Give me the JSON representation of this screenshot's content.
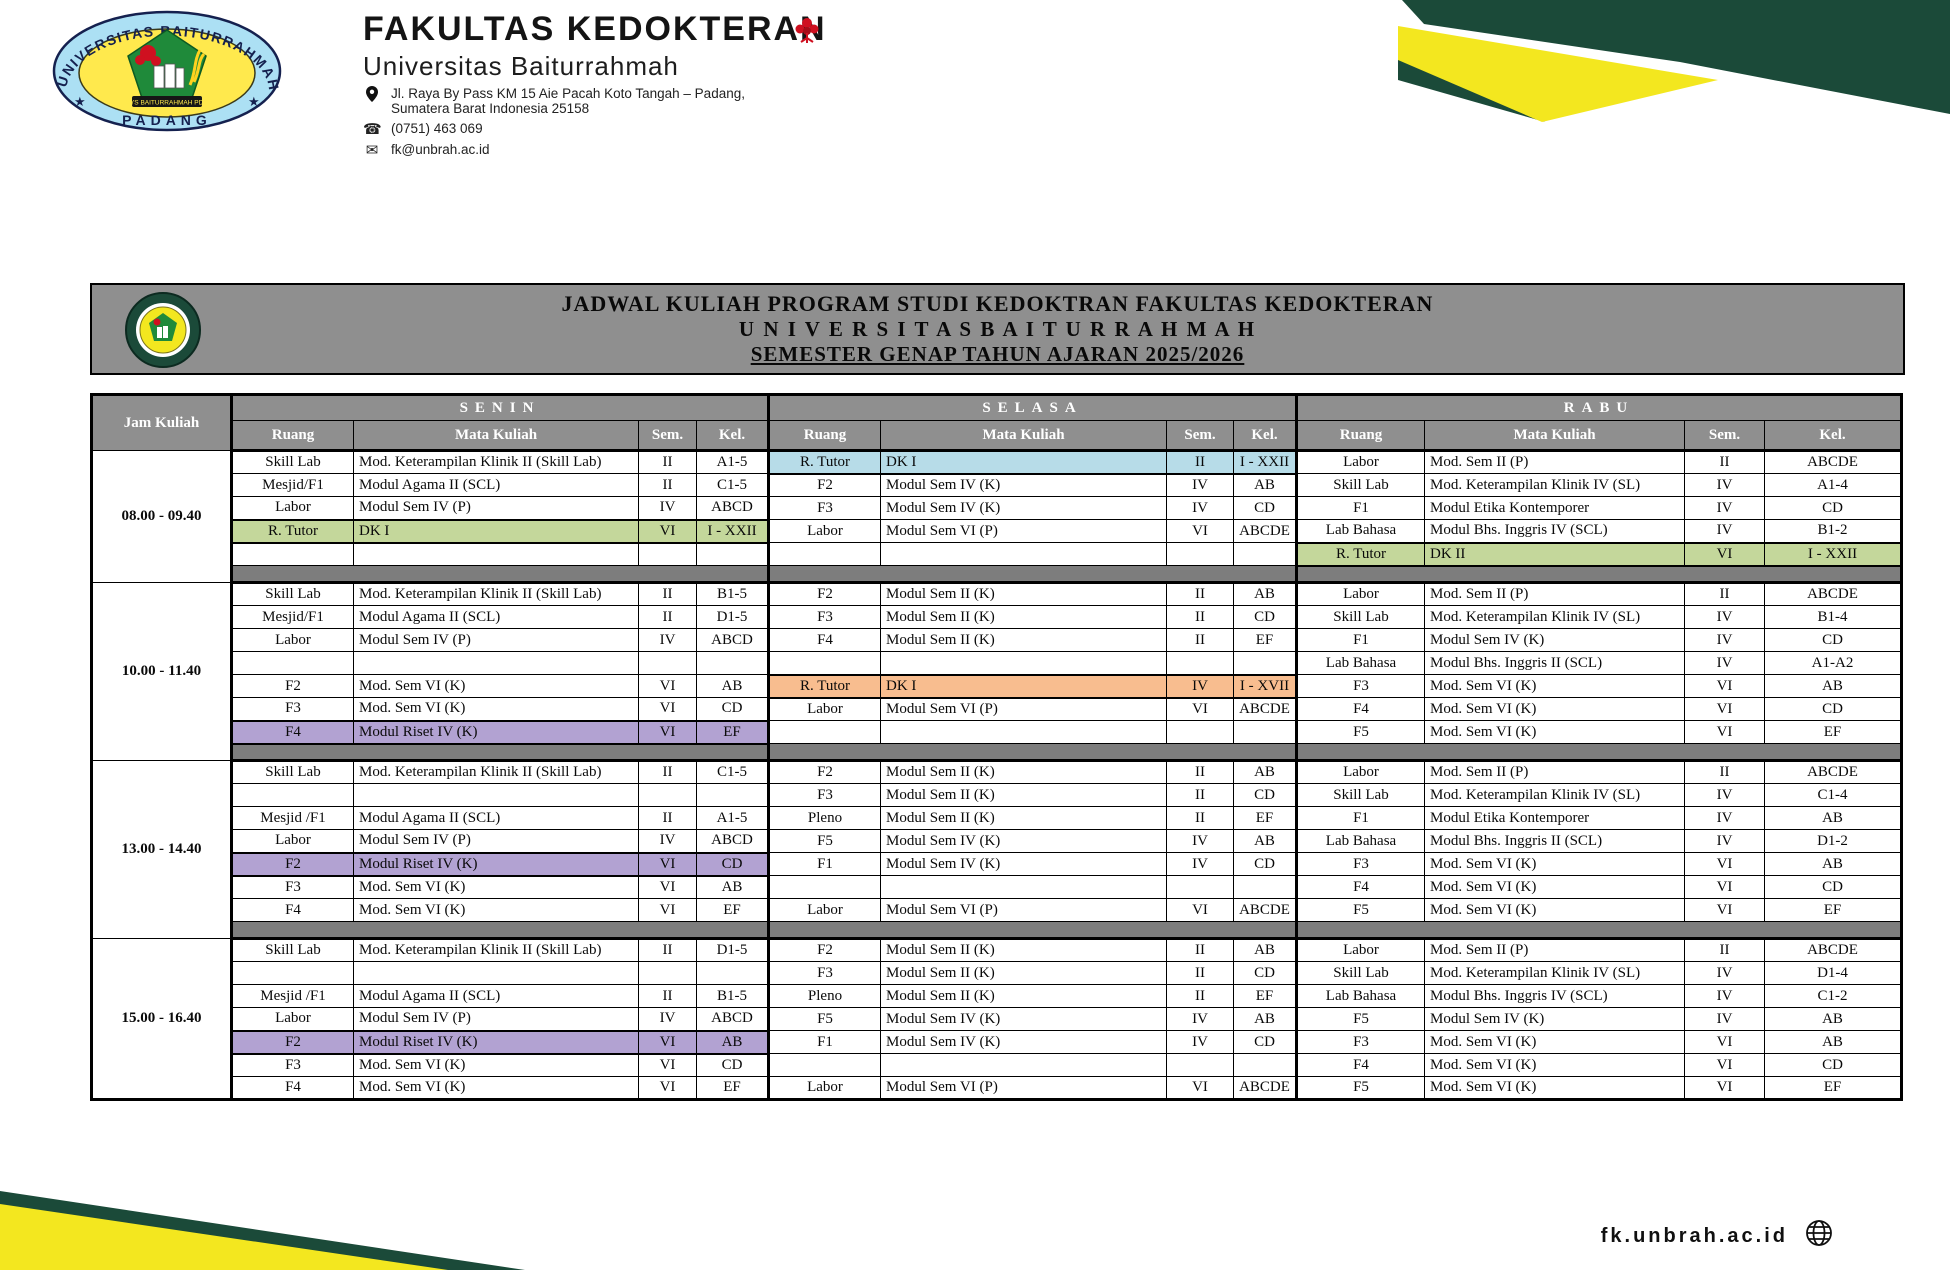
{
  "letterhead": {
    "faculty": "FAKULTAS KEDOKTERAN",
    "university": "Universitas Baiturrahmah",
    "address_line1": "Jl. Raya By Pass KM 15 Aie Pacah Koto Tangah – Padang,",
    "address_line2": "Sumatera Barat Indonesia 25158",
    "phone": "(0751) 463 069",
    "email": "fk@unbrah.ac.id",
    "logo_ring_text": "UNIVERSITAS BAITURRAHMAH",
    "logo_bottom_text": "PADANG",
    "logo_banner_text": "YYS BAITURRAHMAH PDG"
  },
  "title_bar": {
    "line1": "JADWAL KULIAH PROGRAM STUDI KEDOKTRAN FAKULTAS KEDOKTERAN",
    "line2": "U N I V E R S I T A S    B A I T U R R A H M A H",
    "line3": "SEMESTER GENAP TAHUN AJARAN 2025/2026"
  },
  "footer": {
    "website": "fk.unbrah.ac.id"
  },
  "colors": {
    "brand_green": "#1b4a39",
    "brand_yellow": "#f3e71f",
    "header_gray": "#8f8f8f",
    "separator_gray": "#7d7d7d",
    "highlight_green": "#c4d79b",
    "highlight_blue": "#b7dce8",
    "highlight_orange": "#f8bd8f",
    "highlight_purple": "#b2a2d2"
  },
  "schedule": {
    "jam_header": "Jam Kuliah",
    "columns": [
      "Ruang",
      "Mata Kuliah",
      "Sem.",
      "Kel."
    ],
    "days": [
      {
        "key": "senin",
        "label": "SENIN"
      },
      {
        "key": "selasa",
        "label": "SELASA"
      },
      {
        "key": "rabu",
        "label": "RABU"
      }
    ],
    "blocks": [
      {
        "time": "08.00 - 09.40",
        "separator_after": true,
        "rows": {
          "senin": [
            [
              "Skill Lab",
              "Mod. Keterampilan Klinik II (Skill Lab)",
              "II",
              "A1-5",
              ""
            ],
            [
              "Mesjid/F1",
              "Modul Agama II (SCL)",
              "II",
              "C1-5",
              ""
            ],
            [
              "Labor",
              "Modul Sem IV (P)",
              "IV",
              "ABCD",
              ""
            ],
            [
              "R. Tutor",
              "DK I",
              "VI",
              "I - XXII",
              "green"
            ],
            [
              "",
              "",
              "",
              "",
              ""
            ]
          ],
          "selasa": [
            [
              "R. Tutor",
              "DK I",
              "II",
              "I - XXII",
              "blue"
            ],
            [
              "F2",
              "Modul Sem IV (K)",
              "IV",
              "AB",
              ""
            ],
            [
              "F3",
              "Modul Sem IV (K)",
              "IV",
              "CD",
              ""
            ],
            [
              "Labor",
              "Modul Sem VI (P)",
              "VI",
              "ABCDE",
              ""
            ],
            [
              "",
              "",
              "",
              "",
              ""
            ]
          ],
          "rabu": [
            [
              "Labor",
              "Mod. Sem II (P)",
              "II",
              "ABCDE",
              ""
            ],
            [
              "Skill Lab",
              "Mod. Keterampilan Klinik  IV (SL)",
              "IV",
              "A1-4",
              ""
            ],
            [
              "F1",
              "Modul Etika Kontemporer",
              "IV",
              "CD",
              ""
            ],
            [
              "Lab Bahasa",
              "Modul Bhs. Inggris IV (SCL)",
              "IV",
              "B1-2",
              ""
            ],
            [
              "R. Tutor",
              "DK II",
              "VI",
              "I - XXII",
              "green"
            ]
          ]
        }
      },
      {
        "time": "10.00 - 11.40",
        "separator_after": true,
        "rows": {
          "senin": [
            [
              "Skill Lab",
              "Mod. Keterampilan Klinik II (Skill Lab)",
              "II",
              "B1-5",
              ""
            ],
            [
              "Mesjid/F1",
              "Modul Agama II (SCL)",
              "II",
              "D1-5",
              ""
            ],
            [
              "Labor",
              "Modul Sem IV (P)",
              "IV",
              "ABCD",
              ""
            ],
            [
              "",
              "",
              "",
              "",
              ""
            ],
            [
              "F2",
              "Mod. Sem VI (K)",
              "VI",
              "AB",
              ""
            ],
            [
              "F3",
              "Mod. Sem VI (K)",
              "VI",
              "CD",
              ""
            ],
            [
              "F4",
              "Modul Riset IV (K)",
              "VI",
              "EF",
              "purple"
            ]
          ],
          "selasa": [
            [
              "F2",
              "Modul Sem II (K)",
              "II",
              "AB",
              ""
            ],
            [
              "F3",
              "Modul Sem II (K)",
              "II",
              "CD",
              ""
            ],
            [
              "F4",
              "Modul Sem II (K)",
              "II",
              "EF",
              ""
            ],
            [
              "",
              "",
              "",
              "",
              ""
            ],
            [
              "R. Tutor",
              "DK I",
              "IV",
              "I - XVII",
              "orange"
            ],
            [
              "Labor",
              "Modul Sem VI (P)",
              "VI",
              "ABCDE",
              ""
            ],
            [
              "",
              "",
              "",
              "",
              ""
            ]
          ],
          "rabu": [
            [
              "Labor",
              "Mod. Sem II (P)",
              "II",
              "ABCDE",
              ""
            ],
            [
              "Skill Lab",
              "Mod. Keterampilan Klinik  IV (SL)",
              "IV",
              "B1-4",
              ""
            ],
            [
              "F1",
              "Modul Sem IV (K)",
              "IV",
              "CD",
              ""
            ],
            [
              "Lab Bahasa",
              "Modul Bhs. Inggris II (SCL)",
              "IV",
              "A1-A2",
              ""
            ],
            [
              "F3",
              "Mod. Sem VI (K)",
              "VI",
              "AB",
              ""
            ],
            [
              "F4",
              "Mod. Sem VI (K)",
              "VI",
              "CD",
              ""
            ],
            [
              "F5",
              "Mod. Sem VI (K)",
              "VI",
              "EF",
              ""
            ]
          ]
        }
      },
      {
        "time": "13.00 - 14.40",
        "separator_after": true,
        "rows": {
          "senin": [
            [
              "Skill Lab",
              "Mod. Keterampilan Klinik II (Skill Lab)",
              "II",
              "C1-5",
              ""
            ],
            [
              "",
              "",
              "",
              "",
              ""
            ],
            [
              "Mesjid /F1",
              "Modul Agama II (SCL)",
              "II",
              "A1-5",
              ""
            ],
            [
              "Labor",
              "Modul Sem IV (P)",
              "IV",
              "ABCD",
              ""
            ],
            [
              "F2",
              "Modul Riset IV (K)",
              "VI",
              "CD",
              "purple"
            ],
            [
              "F3",
              "Mod. Sem VI (K)",
              "VI",
              "AB",
              ""
            ],
            [
              "F4",
              "Mod. Sem VI (K)",
              "VI",
              "EF",
              ""
            ]
          ],
          "selasa": [
            [
              "F2",
              "Modul Sem II (K)",
              "II",
              "AB",
              ""
            ],
            [
              "F3",
              "Modul Sem II (K)",
              "II",
              "CD",
              ""
            ],
            [
              "Pleno",
              "Modul Sem II (K)",
              "II",
              "EF",
              ""
            ],
            [
              "F5",
              "Modul Sem IV (K)",
              "IV",
              "AB",
              ""
            ],
            [
              "F1",
              "Modul Sem IV (K)",
              "IV",
              "CD",
              ""
            ],
            [
              "",
              "",
              "",
              "",
              ""
            ],
            [
              "Labor",
              "Modul Sem VI (P)",
              "VI",
              "ABCDE",
              ""
            ]
          ],
          "rabu": [
            [
              "Labor",
              "Mod. Sem II (P)",
              "II",
              "ABCDE",
              ""
            ],
            [
              "Skill Lab",
              "Mod. Keterampilan Klinik  IV (SL)",
              "IV",
              "C1-4",
              ""
            ],
            [
              "F1",
              "Modul Etika Kontemporer",
              "IV",
              "AB",
              ""
            ],
            [
              "Lab Bahasa",
              "Modul Bhs. Inggris II (SCL)",
              "IV",
              "D1-2",
              ""
            ],
            [
              "F3",
              "Mod. Sem VI (K)",
              "VI",
              "AB",
              ""
            ],
            [
              "F4",
              "Mod. Sem VI (K)",
              "VI",
              "CD",
              ""
            ],
            [
              "F5",
              "Mod. Sem VI (K)",
              "VI",
              "EF",
              ""
            ]
          ]
        }
      },
      {
        "time": "15.00 - 16.40",
        "separator_after": false,
        "rows": {
          "senin": [
            [
              "Skill Lab",
              "Mod. Keterampilan Klinik II (Skill Lab)",
              "II",
              "D1-5",
              ""
            ],
            [
              "",
              "",
              "",
              "",
              ""
            ],
            [
              "Mesjid /F1",
              "Modul Agama II (SCL)",
              "II",
              "B1-5",
              ""
            ],
            [
              "Labor",
              "Modul Sem IV (P)",
              "IV",
              "ABCD",
              ""
            ],
            [
              "F2",
              "Modul Riset IV (K)",
              "VI",
              "AB",
              "purple"
            ],
            [
              "F3",
              "Mod. Sem VI (K)",
              "VI",
              "CD",
              ""
            ],
            [
              "F4",
              "Mod. Sem VI (K)",
              "VI",
              "EF",
              ""
            ]
          ],
          "selasa": [
            [
              "F2",
              "Modul Sem II (K)",
              "II",
              "AB",
              ""
            ],
            [
              "F3",
              "Modul Sem II (K)",
              "II",
              "CD",
              ""
            ],
            [
              "Pleno",
              "Modul Sem II (K)",
              "II",
              "EF",
              ""
            ],
            [
              "F5",
              "Modul Sem IV (K)",
              "IV",
              "AB",
              ""
            ],
            [
              "F1",
              "Modul Sem IV (K)",
              "IV",
              "CD",
              ""
            ],
            [
              "",
              "",
              "",
              "",
              ""
            ],
            [
              "Labor",
              "Modul Sem VI (P)",
              "VI",
              "ABCDE",
              ""
            ]
          ],
          "rabu": [
            [
              "Labor",
              "Mod. Sem II (P)",
              "II",
              "ABCDE",
              ""
            ],
            [
              "Skill Lab",
              "Mod. Keterampilan Klinik  IV (SL)",
              "IV",
              "D1-4",
              ""
            ],
            [
              "Lab Bahasa",
              "Modul Bhs. Inggris IV (SCL)",
              "IV",
              "C1-2",
              ""
            ],
            [
              "F5",
              "Modul Sem IV (K)",
              "IV",
              "AB",
              ""
            ],
            [
              "F3",
              "Mod. Sem VI (K)",
              "VI",
              "AB",
              ""
            ],
            [
              "F4",
              "Mod. Sem VI (K)",
              "VI",
              "CD",
              ""
            ],
            [
              "F5",
              "Mod. Sem VI (K)",
              "VI",
              "EF",
              ""
            ]
          ]
        }
      }
    ]
  }
}
